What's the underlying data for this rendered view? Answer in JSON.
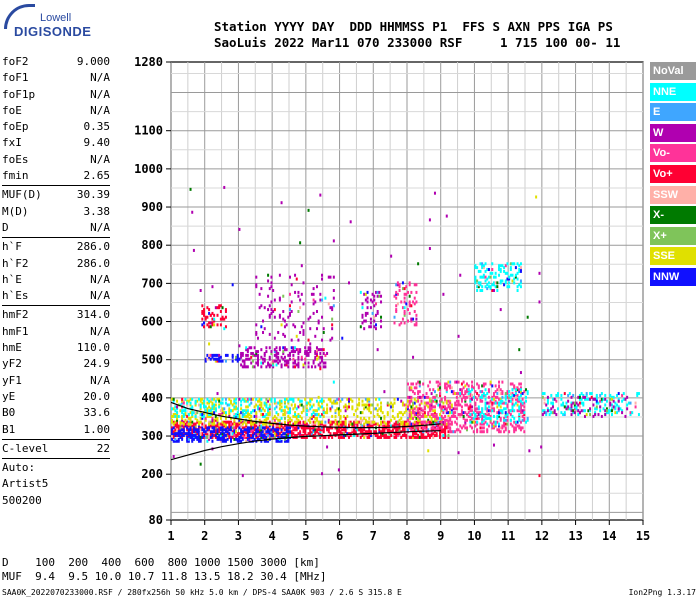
{
  "logo": {
    "line1": "Lowell",
    "line2": "DIGISONDE"
  },
  "header": {
    "line1": "Station YYYY DAY  DDD HHMMSS P1  FFS S AXN PPS IGA PS",
    "line2": "SaoLuis 2022 Mar11 070 233000 RSF     1 715 100 00- 11"
  },
  "params": {
    "group1": [
      {
        "label": "foF2",
        "value": "9.000"
      },
      {
        "label": "foF1",
        "value": "N/A"
      },
      {
        "label": "foF1p",
        "value": "N/A"
      },
      {
        "label": "foE",
        "value": "N/A"
      },
      {
        "label": "foEp",
        "value": "0.35"
      },
      {
        "label": "fxI",
        "value": "9.40"
      },
      {
        "label": "foEs",
        "value": "N/A"
      },
      {
        "label": "fmin",
        "value": "2.65"
      }
    ],
    "group2": [
      {
        "label": "MUF(D)",
        "value": "30.39"
      },
      {
        "label": "M(D)",
        "value": "3.38"
      },
      {
        "label": "D",
        "value": "N/A"
      }
    ],
    "group3": [
      {
        "label": "h`F",
        "value": "286.0"
      },
      {
        "label": "h`F2",
        "value": "286.0"
      },
      {
        "label": "h`E",
        "value": "N/A"
      },
      {
        "label": "h`Es",
        "value": "N/A"
      }
    ],
    "group4": [
      {
        "label": "hmF2",
        "value": "314.0"
      },
      {
        "label": "hmF1",
        "value": "N/A"
      },
      {
        "label": "hmE",
        "value": "110.0"
      },
      {
        "label": "yF2",
        "value": "24.9"
      },
      {
        "label": "yF1",
        "value": "N/A"
      },
      {
        "label": "yE",
        "value": "20.0"
      },
      {
        "label": "B0",
        "value": "33.6"
      },
      {
        "label": "B1",
        "value": "1.00"
      }
    ],
    "group5": [
      {
        "label": "C-level",
        "value": "22"
      }
    ],
    "auto": {
      "line1": "Auto:",
      "line2": "Artist5",
      "line3": "500200"
    }
  },
  "bottom": {
    "line1": "D    100  200  400  600  800 1000 1500 3000 [km]",
    "line2": "MUF  9.4  9.5 10.0 10.7 11.8 13.5 18.2 30.4 [MHz]"
  },
  "footer": {
    "left": "SAA0K_2022070233000.RSF / 280fx256h 50 kHz 5.0 km / DPS-4 SAA0K 903 / 2.6 S 315.8 E",
    "right": "Ion2Png 1.3.17"
  },
  "legend": [
    {
      "label": "NoVal",
      "color": "#9a9a9a"
    },
    {
      "label": "NNE",
      "color": "#00ffff"
    },
    {
      "label": "E",
      "color": "#3fa6ff"
    },
    {
      "label": "W",
      "color": "#b000b0"
    },
    {
      "label": "Vo-",
      "color": "#ff3399"
    },
    {
      "label": "Vo+",
      "color": "#ff0033"
    },
    {
      "label": "SSW",
      "color": "#ffb0a8"
    },
    {
      "label": "X-",
      "color": "#007a00"
    },
    {
      "label": "X+",
      "color": "#7fc45a"
    },
    {
      "label": "SSE",
      "color": "#e0e000"
    },
    {
      "label": "NNW",
      "color": "#1010ff"
    }
  ],
  "chart_data": {
    "type": "scatter",
    "xlim": [
      1,
      15
    ],
    "ylim": [
      80,
      1280
    ],
    "x_ticks": [
      "1",
      "2",
      "3",
      "4",
      "5",
      "6",
      "7",
      "8",
      "9",
      "10",
      "11",
      "12",
      "13",
      "14",
      "15"
    ],
    "y_ticks": [
      {
        "value": 80,
        "label": "80"
      },
      {
        "value": 200,
        "label": "200"
      },
      {
        "value": 300,
        "label": "300"
      },
      {
        "value": 400,
        "label": "400"
      },
      {
        "value": 500,
        "label": "500"
      },
      {
        "value": 600,
        "label": "600"
      },
      {
        "value": 700,
        "label": "700"
      },
      {
        "value": 800,
        "label": "800"
      },
      {
        "value": 900,
        "label": "900"
      },
      {
        "value": 1000,
        "label": "1000"
      },
      {
        "value": 1100,
        "label": "1100"
      },
      {
        "value": 1280,
        "label": "1280"
      }
    ],
    "grid": true,
    "echo_regions": [
      {
        "name": "F2 O-trace",
        "x": [
          1.0,
          9.2
        ],
        "y": [
          295,
          335
        ],
        "mode": "Vo+",
        "density": 0.55
      },
      {
        "name": "F2 low",
        "x": [
          1.0,
          4.5
        ],
        "y": [
          285,
          320
        ],
        "mode": "NNW",
        "density": 0.5
      },
      {
        "name": "F2 upper",
        "x": [
          1.0,
          9.3
        ],
        "y": [
          330,
          395
        ],
        "mode": "SSE",
        "density": 0.25
      },
      {
        "name": "F2 upper NNE",
        "x": [
          1.0,
          5.5
        ],
        "y": [
          350,
          395
        ],
        "mode": "NNE",
        "density": 0.18
      },
      {
        "name": "X-trace",
        "x": [
          8.0,
          11.5
        ],
        "y": [
          310,
          440
        ],
        "mode": "Vo-",
        "density": 0.3
      },
      {
        "name": "X-trace mix",
        "x": [
          9.8,
          11.6
        ],
        "y": [
          330,
          420
        ],
        "mode": "NNE",
        "density": 0.18
      },
      {
        "name": "spread 12-15",
        "x": [
          12.0,
          14.9
        ],
        "y": [
          355,
          410
        ],
        "mode": "NNE",
        "density": 0.2
      },
      {
        "name": "spread 12-15 W",
        "x": [
          12.0,
          14.6
        ],
        "y": [
          350,
          400
        ],
        "mode": "W",
        "density": 0.12
      },
      {
        "name": "second hop",
        "x": [
          3.0,
          5.6
        ],
        "y": [
          480,
          530
        ],
        "mode": "W",
        "density": 0.35
      },
      {
        "name": "second hop spread",
        "x": [
          3.5,
          5.8
        ],
        "y": [
          550,
          720
        ],
        "mode": "W",
        "density": 0.07
      },
      {
        "name": "patch 7",
        "x": [
          6.6,
          7.2
        ],
        "y": [
          580,
          680
        ],
        "mode": "W",
        "density": 0.2
      },
      {
        "name": "patch 8",
        "x": [
          7.6,
          8.3
        ],
        "y": [
          590,
          700
        ],
        "mode": "Vo-",
        "density": 0.2
      },
      {
        "name": "patch 10.5",
        "x": [
          10.0,
          11.4
        ],
        "y": [
          680,
          750
        ],
        "mode": "NNE",
        "density": 0.22
      },
      {
        "name": "patch 2.5",
        "x": [
          1.9,
          2.6
        ],
        "y": [
          580,
          640
        ],
        "mode": "Vo+",
        "density": 0.2
      },
      {
        "name": "low hop",
        "x": [
          2.0,
          3.0
        ],
        "y": [
          495,
          510
        ],
        "mode": "NNW",
        "density": 0.35
      },
      {
        "name": "sparse",
        "x": [
          1.0,
          12.0
        ],
        "y": [
          150,
          950
        ],
        "mode": "W",
        "density": 0.0015
      }
    ],
    "fitted_trace": [
      {
        "x": 1.0,
        "y": 388
      },
      {
        "x": 1.5,
        "y": 372
      },
      {
        "x": 2.0,
        "y": 362
      },
      {
        "x": 2.5,
        "y": 352
      },
      {
        "x": 3.0,
        "y": 345
      },
      {
        "x": 3.5,
        "y": 338
      },
      {
        "x": 4.0,
        "y": 333
      },
      {
        "x": 4.5,
        "y": 329
      },
      {
        "x": 5.0,
        "y": 326
      },
      {
        "x": 5.5,
        "y": 324
      },
      {
        "x": 6.0,
        "y": 323
      },
      {
        "x": 6.5,
        "y": 322
      },
      {
        "x": 7.0,
        "y": 322
      },
      {
        "x": 7.5,
        "y": 323
      },
      {
        "x": 8.0,
        "y": 325
      },
      {
        "x": 8.5,
        "y": 328
      },
      {
        "x": 9.0,
        "y": 332
      }
    ],
    "profile": [
      {
        "x": 1.0,
        "y": 238
      },
      {
        "x": 1.5,
        "y": 250
      },
      {
        "x": 2.0,
        "y": 262
      },
      {
        "x": 2.5,
        "y": 272
      },
      {
        "x": 3.0,
        "y": 280
      },
      {
        "x": 3.5,
        "y": 287
      },
      {
        "x": 4.0,
        "y": 292
      },
      {
        "x": 4.5,
        "y": 296
      },
      {
        "x": 5.0,
        "y": 299
      },
      {
        "x": 5.5,
        "y": 301
      },
      {
        "x": 6.0,
        "y": 303
      },
      {
        "x": 6.5,
        "y": 305
      },
      {
        "x": 7.0,
        "y": 307
      },
      {
        "x": 7.5,
        "y": 309
      },
      {
        "x": 8.0,
        "y": 311
      },
      {
        "x": 8.5,
        "y": 313
      },
      {
        "x": 9.0,
        "y": 314
      }
    ]
  }
}
